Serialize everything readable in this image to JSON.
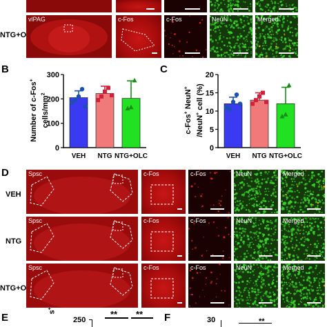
{
  "panel_a": {
    "rows": [
      {
        "group": "",
        "tiles": [
          "",
          "",
          "",
          ""
        ]
      },
      {
        "group": "NTG+OLC",
        "tiles": [
          "vlPAG",
          "c-Fos",
          "c-Fos",
          "NeuN",
          "Merged"
        ]
      }
    ]
  },
  "panel_b": {
    "letter": "B",
    "ylabel_line1": "Number of c-Fos",
    "ylabel_sup": "+",
    "ylabel_line2": "cells/mm",
    "ylabel_sup2": "2"
  },
  "panel_c": {
    "letter": "C",
    "ylabel_line1": "c-Fos",
    "ylabel_line1b": "NeuN",
    "ylabel_line2": "/NeuN",
    "ylabel_line2b": "cell (%)"
  },
  "panel_d": {
    "letter": "D",
    "rows": [
      {
        "group": "VEH",
        "region": "Spsc",
        "tiles": [
          "c-Fos",
          "c-Fos",
          "NeuN",
          "Merged"
        ]
      },
      {
        "group": "NTG",
        "region": "Spsc",
        "tiles": [
          "c-Fos",
          "c-Fos",
          "NeuN",
          "Merged"
        ]
      },
      {
        "group": "NTG+OLC",
        "region": "Spsc",
        "tiles": [
          "c-Fos",
          "c-Fos",
          "NeuN",
          "Merged"
        ]
      }
    ]
  },
  "panel_e": {
    "letter": "E",
    "ylabel_fragment": "s",
    "ytick_top": "250",
    "sig1": "**",
    "sig2": "**"
  },
  "panel_f": {
    "letter": "F",
    "ytick_top": "30",
    "sig": "**"
  },
  "colors": {
    "veh": "#3a3af0",
    "ntg": "#f07a7a",
    "ntg_olc": "#22e022",
    "veh_dot": "#1d4fb0",
    "ntg_dot": "#d0203a",
    "olc_dot": "#1a8a1a"
  },
  "chart_data": [
    {
      "type": "bar",
      "categories": [
        "VEH",
        "NTG",
        "NTG+OLC"
      ],
      "values": [
        205,
        222,
        202
      ],
      "errors": [
        28,
        30,
        72
      ],
      "points": [
        [
          185,
          195,
          210,
          240,
          170
        ],
        [
          195,
          210,
          230,
          245,
          215
        ],
        [
          160,
          165,
          275
        ]
      ],
      "ylabel": "Number of c-Fos+ cells/mm2",
      "ylim": [
        0,
        300
      ],
      "yticks": [
        0,
        100,
        200,
        300
      ]
    },
    {
      "type": "bar",
      "categories": [
        "VEH",
        "NTG",
        "NTG+OLC"
      ],
      "values": [
        12,
        13,
        12
      ],
      "errors": [
        1.8,
        2.0,
        4.5
      ],
      "points": [
        [
          11,
          10.5,
          12.5,
          14.5,
          12
        ],
        [
          12,
          13,
          14,
          15,
          12.5
        ],
        [
          8.5,
          9,
          17
        ]
      ],
      "ylabel": "c-Fos+ NeuN+ /NeuN+ cell (%)",
      "ylim": [
        0,
        20
      ],
      "yticks": [
        0,
        5,
        10,
        15,
        20
      ]
    }
  ]
}
